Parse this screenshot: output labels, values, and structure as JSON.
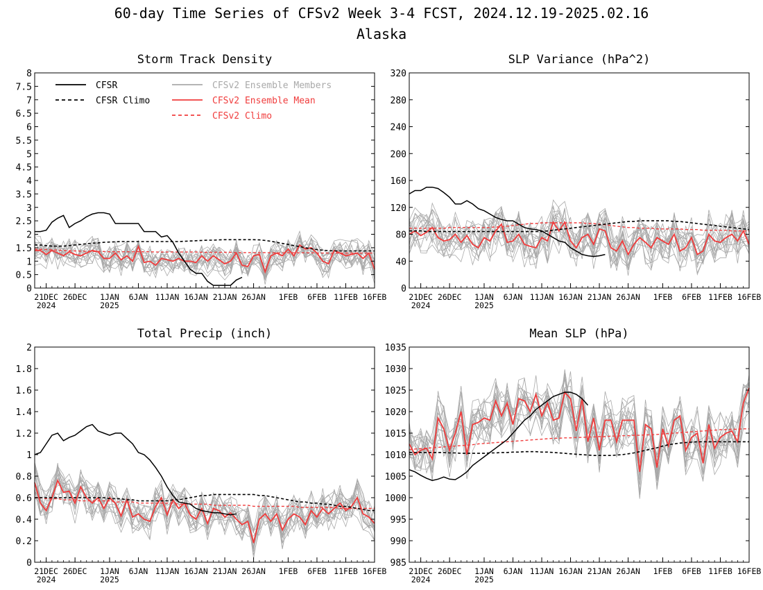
{
  "figure": {
    "title": "60-day Time Series of CFSv2 Week 3-4 FCST, 2024.12.19-2025.02.16",
    "subtitle": "Alaska"
  },
  "x_axis": {
    "tick_labels": [
      "21DEC",
      "26DEC",
      "1JAN",
      "6JAN",
      "11JAN",
      "16JAN",
      "21JAN",
      "26JAN",
      "1FEB",
      "6FEB",
      "11FEB",
      "16FEB"
    ],
    "tick_days": [
      2,
      7,
      13,
      18,
      23,
      28,
      33,
      38,
      44,
      49,
      54,
      59
    ],
    "year_labels": [
      {
        "text": "2024",
        "day": 2
      },
      {
        "text": "2025",
        "day": 13
      }
    ],
    "xlim": [
      0,
      59
    ]
  },
  "legend": {
    "cfsr": "CFSR",
    "cfsr_climo": "CFSR Climo",
    "members": "CFSv2 Ensemble Members",
    "ens_mean": "CFSv2 Ensemble Mean",
    "cfsv2_climo": "CFSv2 Climo"
  },
  "colors": {
    "cfsr": "#000000",
    "members": "#a9a9a9",
    "ens_mean": "#f03c3c",
    "climo_red": "#f03c3c"
  },
  "chart_data": [
    {
      "type": "line",
      "title": "Storm Track Density",
      "ylim": [
        0,
        8
      ],
      "yticks": [
        "0",
        "0.5",
        "1",
        "1.5",
        "2",
        "2.5",
        "3",
        "3.5",
        "4",
        "4.5",
        "5",
        "5.5",
        "6",
        "6.5",
        "7",
        "7.5",
        "8"
      ],
      "cfsr": [
        2.1,
        2.1,
        2.15,
        2.45,
        2.6,
        2.7,
        2.25,
        2.4,
        2.5,
        2.65,
        2.75,
        2.8,
        2.8,
        2.75,
        2.4,
        2.4,
        2.4,
        2.4,
        2.4,
        2.1,
        2.1,
        2.1,
        1.9,
        1.95,
        1.7,
        1.3,
        1.0,
        0.7,
        0.55,
        0.55,
        0.25,
        0.1,
        0.1,
        0.1,
        0.1,
        0.3,
        0.4
      ],
      "cfsr_climo": [
        1.6,
        1.6,
        1.58,
        1.56,
        1.56,
        1.56,
        1.58,
        1.6,
        1.62,
        1.65,
        1.67,
        1.68,
        1.7,
        1.71,
        1.72,
        1.73,
        1.73,
        1.73,
        1.73,
        1.73,
        1.73,
        1.73,
        1.73,
        1.73,
        1.73,
        1.73,
        1.74,
        1.75,
        1.76,
        1.77,
        1.78,
        1.78,
        1.79,
        1.8,
        1.8,
        1.8,
        1.8,
        1.8,
        1.8,
        1.79,
        1.77,
        1.74,
        1.7,
        1.66,
        1.62,
        1.58,
        1.54,
        1.5,
        1.46,
        1.43,
        1.41,
        1.39,
        1.38,
        1.38,
        1.38,
        1.38,
        1.38,
        1.38,
        1.38,
        1.38
      ],
      "cfsv2_climo": [
        1.45,
        1.44,
        1.43,
        1.42,
        1.41,
        1.4,
        1.39,
        1.38,
        1.37,
        1.37,
        1.36,
        1.36,
        1.36,
        1.35,
        1.35,
        1.35,
        1.35,
        1.35,
        1.35,
        1.35,
        1.35,
        1.34,
        1.34,
        1.34,
        1.34,
        1.34,
        1.34,
        1.34,
        1.34,
        1.33,
        1.33,
        1.33,
        1.33,
        1.33,
        1.33,
        1.32,
        1.32,
        1.32,
        1.32,
        1.32,
        1.32,
        1.31,
        1.31,
        1.31,
        1.31,
        1.31,
        1.31,
        1.31,
        1.31,
        1.3,
        1.3,
        1.3,
        1.3,
        1.3,
        1.3,
        1.3,
        1.3,
        1.3,
        1.3,
        1.3
      ],
      "ens_mean": [
        1.4,
        1.4,
        1.25,
        1.4,
        1.3,
        1.2,
        1.35,
        1.25,
        1.2,
        1.3,
        1.4,
        1.35,
        1.1,
        1.1,
        1.3,
        1.05,
        1.2,
        1.0,
        1.55,
        0.95,
        1.0,
        0.85,
        1.1,
        1.05,
        1.0,
        1.1,
        1.0,
        1.0,
        0.95,
        1.2,
        1.0,
        1.2,
        1.05,
        0.9,
        1.0,
        1.3,
        0.85,
        0.8,
        1.2,
        1.25,
        0.6,
        1.2,
        1.3,
        1.2,
        1.45,
        1.2,
        1.6,
        1.45,
        1.5,
        1.3,
        1.0,
        0.9,
        1.4,
        1.3,
        1.2,
        1.25,
        1.3,
        1.1,
        1.3,
        0.7
      ],
      "member_spread": 0.45,
      "member_seed": 7
    },
    {
      "type": "line",
      "title": "SLP Variance (hPa^2)",
      "ylim": [
        0,
        320
      ],
      "yticks": [
        "0",
        "40",
        "80",
        "120",
        "160",
        "200",
        "240",
        "280",
        "320"
      ],
      "cfsr": [
        140,
        145,
        145,
        150,
        150,
        148,
        142,
        135,
        125,
        125,
        130,
        125,
        118,
        115,
        110,
        105,
        102,
        100,
        100,
        95,
        90,
        88,
        87,
        85,
        80,
        75,
        70,
        68,
        60,
        55,
        50,
        48,
        47,
        48,
        50
      ],
      "cfsr_climo": [
        85,
        85,
        85,
        84,
        84,
        84,
        84,
        84,
        84,
        84,
        84,
        84,
        84,
        84,
        84,
        84,
        84,
        84,
        84,
        84,
        84,
        84,
        84,
        84,
        85,
        86,
        87,
        88,
        89,
        90,
        91,
        92,
        93,
        94,
        95,
        96,
        97,
        98,
        99,
        99,
        100,
        100,
        100,
        100,
        100,
        100,
        99,
        99,
        98,
        97,
        96,
        95,
        94,
        93,
        92,
        91,
        90,
        89,
        88,
        87
      ],
      "cfsv2_climo": [
        89,
        89,
        89,
        89,
        89,
        89,
        89,
        90,
        90,
        90,
        90,
        90,
        90,
        90,
        90,
        91,
        91,
        92,
        93,
        94,
        95,
        96,
        96,
        97,
        97,
        97,
        97,
        97,
        97,
        97,
        97,
        96,
        96,
        95,
        94,
        93,
        92,
        91,
        90,
        90,
        89,
        89,
        89,
        88,
        88,
        88,
        88,
        88,
        87,
        87,
        87,
        86,
        86,
        86,
        86,
        86,
        85,
        85,
        85,
        85
      ],
      "ens_mean": [
        80,
        85,
        78,
        83,
        90,
        75,
        70,
        72,
        80,
        68,
        78,
        65,
        60,
        75,
        70,
        85,
        95,
        68,
        70,
        80,
        65,
        62,
        60,
        75,
        70,
        98,
        85,
        98,
        70,
        60,
        75,
        80,
        65,
        88,
        85,
        60,
        55,
        70,
        50,
        65,
        75,
        68,
        60,
        75,
        70,
        65,
        80,
        55,
        60,
        75,
        50,
        55,
        80,
        70,
        68,
        75,
        80,
        70,
        85,
        65
      ],
      "member_spread": 28,
      "member_seed": 13
    },
    {
      "type": "line",
      "title": "Total Precip (inch)",
      "ylim": [
        0,
        2
      ],
      "yticks": [
        "0",
        "0.2",
        "0.4",
        "0.6",
        "0.8",
        "1",
        "1.2",
        "1.4",
        "1.6",
        "1.8",
        "2"
      ],
      "cfsr": [
        1.0,
        1.02,
        1.1,
        1.18,
        1.2,
        1.13,
        1.16,
        1.18,
        1.22,
        1.26,
        1.28,
        1.22,
        1.2,
        1.18,
        1.2,
        1.2,
        1.15,
        1.1,
        1.02,
        1.0,
        0.95,
        0.88,
        0.8,
        0.7,
        0.62,
        0.56,
        0.55,
        0.54,
        0.5,
        0.48,
        0.47,
        0.46,
        0.46,
        0.45,
        0.44,
        0.45
      ],
      "cfsr_climo": [
        0.6,
        0.6,
        0.6,
        0.6,
        0.6,
        0.6,
        0.6,
        0.6,
        0.6,
        0.6,
        0.6,
        0.6,
        0.6,
        0.59,
        0.59,
        0.59,
        0.58,
        0.58,
        0.57,
        0.57,
        0.57,
        0.57,
        0.57,
        0.57,
        0.58,
        0.58,
        0.59,
        0.6,
        0.61,
        0.62,
        0.62,
        0.63,
        0.63,
        0.63,
        0.63,
        0.63,
        0.63,
        0.63,
        0.63,
        0.62,
        0.62,
        0.61,
        0.6,
        0.59,
        0.58,
        0.57,
        0.56,
        0.56,
        0.55,
        0.55,
        0.54,
        0.54,
        0.53,
        0.52,
        0.52,
        0.51,
        0.5,
        0.49,
        0.48,
        0.48
      ],
      "cfsv2_climo": [
        0.6,
        0.6,
        0.59,
        0.59,
        0.59,
        0.58,
        0.58,
        0.58,
        0.57,
        0.57,
        0.57,
        0.57,
        0.57,
        0.57,
        0.56,
        0.56,
        0.56,
        0.56,
        0.55,
        0.55,
        0.55,
        0.55,
        0.55,
        0.55,
        0.55,
        0.54,
        0.54,
        0.54,
        0.54,
        0.54,
        0.54,
        0.53,
        0.53,
        0.53,
        0.53,
        0.53,
        0.53,
        0.53,
        0.52,
        0.52,
        0.52,
        0.52,
        0.52,
        0.52,
        0.52,
        0.52,
        0.51,
        0.51,
        0.51,
        0.51,
        0.51,
        0.51,
        0.51,
        0.5,
        0.5,
        0.5,
        0.5,
        0.5,
        0.5,
        0.5
      ],
      "ens_mean": [
        0.74,
        0.55,
        0.48,
        0.6,
        0.76,
        0.65,
        0.66,
        0.55,
        0.7,
        0.6,
        0.55,
        0.6,
        0.5,
        0.6,
        0.55,
        0.43,
        0.58,
        0.42,
        0.45,
        0.4,
        0.38,
        0.52,
        0.6,
        0.44,
        0.58,
        0.5,
        0.55,
        0.44,
        0.4,
        0.5,
        0.36,
        0.5,
        0.48,
        0.42,
        0.46,
        0.4,
        0.35,
        0.38,
        0.18,
        0.4,
        0.45,
        0.38,
        0.45,
        0.3,
        0.4,
        0.45,
        0.42,
        0.35,
        0.48,
        0.42,
        0.5,
        0.45,
        0.5,
        0.55,
        0.48,
        0.52,
        0.6,
        0.45,
        0.42,
        0.36
      ],
      "member_spread": 0.14,
      "member_seed": 23
    },
    {
      "type": "line",
      "title": "Mean SLP (hPa)",
      "ylim": [
        985,
        1035
      ],
      "yticks": [
        "985",
        "990",
        "995",
        "1000",
        "1005",
        "1010",
        "1015",
        "1020",
        "1025",
        "1030",
        "1035"
      ],
      "cfsr": [
        1006.5,
        1006,
        1005.2,
        1004.5,
        1004,
        1004.3,
        1004.8,
        1004.3,
        1004.2,
        1005,
        1006,
        1007.5,
        1008.5,
        1009.5,
        1010.5,
        1011.5,
        1012.5,
        1013.5,
        1015,
        1016.5,
        1018,
        1019,
        1020.5,
        1021.5,
        1022.5,
        1023.5,
        1024,
        1024.5,
        1024.5,
        1024,
        1023,
        1021.5
      ],
      "cfsr_climo": [
        1010.5,
        1010.5,
        1010.5,
        1010.5,
        1010.5,
        1010.5,
        1010.5,
        1010.4,
        1010.4,
        1010.3,
        1010.3,
        1010.3,
        1010.3,
        1010.3,
        1010.4,
        1010.4,
        1010.5,
        1010.5,
        1010.6,
        1010.6,
        1010.7,
        1010.7,
        1010.7,
        1010.6,
        1010.6,
        1010.5,
        1010.4,
        1010.3,
        1010.2,
        1010.1,
        1010.0,
        1009.9,
        1009.8,
        1009.8,
        1009.8,
        1009.8,
        1009.9,
        1010.0,
        1010.2,
        1010.4,
        1010.7,
        1011.0,
        1011.3,
        1011.6,
        1012.0,
        1012.3,
        1012.5,
        1012.7,
        1012.8,
        1012.9,
        1013.0,
        1013.0,
        1013.0,
        1013.0,
        1013.0,
        1013.0,
        1013.0,
        1013.0,
        1013.0,
        1013.0
      ],
      "cfsv2_climo": [
        1011.2,
        1011.3,
        1011.4,
        1011.5,
        1011.6,
        1011.7,
        1011.8,
        1011.9,
        1012.0,
        1012.1,
        1012.2,
        1012.3,
        1012.5,
        1012.6,
        1012.7,
        1012.8,
        1012.9,
        1013.0,
        1013.1,
        1013.2,
        1013.3,
        1013.4,
        1013.5,
        1013.6,
        1013.7,
        1013.8,
        1013.8,
        1013.9,
        1013.9,
        1014.0,
        1014.0,
        1014.1,
        1014.1,
        1014.2,
        1014.2,
        1014.3,
        1014.3,
        1014.4,
        1014.4,
        1014.5,
        1014.5,
        1014.6,
        1014.6,
        1014.7,
        1014.8,
        1014.9,
        1015.0,
        1015.1,
        1015.2,
        1015.3,
        1015.4,
        1015.5,
        1015.6,
        1015.7,
        1015.8,
        1015.8,
        1015.9,
        1015.9,
        1016.0,
        1016.0
      ],
      "ens_mean": [
        1012.5,
        1010,
        1011,
        1011.5,
        1009,
        1018.5,
        1016,
        1011,
        1015,
        1020,
        1010,
        1017,
        1017.5,
        1018.5,
        1018,
        1022.5,
        1019,
        1022,
        1017,
        1023,
        1022.5,
        1020,
        1024,
        1019,
        1022,
        1018,
        1018.5,
        1024.5,
        1023,
        1015.5,
        1023,
        1013,
        1018.5,
        1011,
        1018,
        1018,
        1013,
        1018,
        1018,
        1018,
        1006,
        1017,
        1016,
        1007,
        1016,
        1012,
        1018,
        1019,
        1011,
        1014,
        1015,
        1008,
        1017,
        1011.5,
        1014,
        1015,
        1015.5,
        1013,
        1022,
        1025.5
      ],
      "member_spread": 5,
      "member_seed": 41
    }
  ]
}
